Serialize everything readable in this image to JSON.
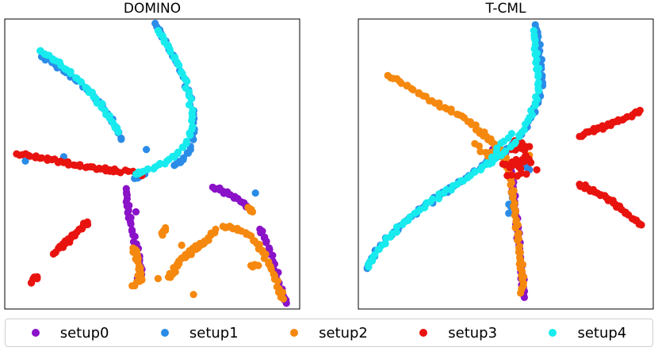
{
  "chart_data": [
    {
      "type": "scatter",
      "title": "DOMINO",
      "xlabel": "",
      "ylabel": "",
      "xlim": [
        0,
        100
      ],
      "ylim": [
        0,
        100
      ],
      "axis_ticks": false,
      "grid": false,
      "series": [
        {
          "name": "setup0",
          "color": "#8a12c8",
          "points": [
            [
              41.2,
              41.5
            ],
            [
              41.5,
              38.0
            ],
            [
              42.0,
              34.0
            ],
            [
              42.6,
              30.0
            ],
            [
              43.5,
              25.5
            ],
            [
              44.6,
              21.5
            ],
            [
              45.5,
              17.5
            ],
            [
              46.0,
              14.5
            ],
            [
              46.4,
              12.0
            ],
            [
              45.2,
              10.5
            ],
            [
              44.5,
              33.5
            ],
            [
              70.5,
              42.0
            ],
            [
              73.0,
              41.0
            ],
            [
              76.0,
              39.5
            ],
            [
              79.0,
              38.0
            ],
            [
              81.0,
              36.5
            ],
            [
              82.5,
              35.0
            ],
            [
              86.5,
              27.5
            ],
            [
              88.0,
              24.5
            ],
            [
              89.8,
              20.5
            ],
            [
              91.5,
              15.5
            ],
            [
              93.0,
              9.0
            ],
            [
              94.5,
              4.5
            ],
            [
              95.5,
              2.0
            ]
          ]
        },
        {
          "name": "setup1",
          "color": "#2b8ce8",
          "points": [
            [
              51.0,
              98.5
            ],
            [
              53.0,
              95.0
            ],
            [
              55.5,
              90.5
            ],
            [
              58.0,
              85.5
            ],
            [
              60.5,
              80.0
            ],
            [
              62.5,
              74.0
            ],
            [
              64.0,
              67.0
            ],
            [
              64.2,
              61.0
            ],
            [
              63.0,
              55.0
            ],
            [
              60.5,
              51.5
            ],
            [
              57.5,
              49.5
            ],
            [
              12.5,
              87.0
            ],
            [
              16.0,
              85.0
            ],
            [
              20.0,
              82.0
            ],
            [
              24.0,
              79.0
            ],
            [
              28.0,
              75.5
            ],
            [
              32.0,
              71.5
            ],
            [
              35.5,
              66.5
            ],
            [
              38.0,
              62.0
            ],
            [
              39.5,
              58.5
            ],
            [
              7.0,
              51.0
            ],
            [
              20.0,
              52.5
            ],
            [
              44.0,
              45.0
            ],
            [
              47.5,
              46.5
            ],
            [
              48.0,
              55.0
            ],
            [
              85.0,
              40.0
            ]
          ]
        },
        {
          "name": "setup2",
          "color": "#f5880e",
          "points": [
            [
              74.0,
              28.5
            ],
            [
              77.0,
              28.0
            ],
            [
              80.0,
              27.0
            ],
            [
              83.0,
              25.5
            ],
            [
              85.5,
              22.5
            ],
            [
              87.5,
              19.5
            ],
            [
              89.5,
              15.5
            ],
            [
              91.5,
              11.5
            ],
            [
              93.0,
              7.0
            ],
            [
              94.5,
              3.5
            ],
            [
              71.5,
              27.5
            ],
            [
              69.0,
              24.5
            ],
            [
              67.5,
              22.5
            ],
            [
              65.5,
              22.0
            ],
            [
              63.5,
              20.0
            ],
            [
              62.0,
              18.5
            ],
            [
              60.0,
              17.5
            ],
            [
              58.5,
              15.5
            ],
            [
              57.0,
              12.5
            ],
            [
              55.5,
              11.0
            ],
            [
              54.5,
              28.0
            ],
            [
              53.5,
              25.5
            ],
            [
              65.5,
              21.0
            ],
            [
              43.5,
              21.0
            ],
            [
              44.5,
              19.0
            ],
            [
              45.0,
              16.5
            ],
            [
              46.0,
              14.0
            ],
            [
              45.5,
              11.0
            ],
            [
              46.5,
              10.0
            ],
            [
              43.2,
              8.0
            ],
            [
              52.0,
              10.5
            ],
            [
              83.5,
              15.0
            ],
            [
              86.0,
              15.0
            ],
            [
              64.0,
              5.0
            ],
            [
              82.5,
              35.0
            ],
            [
              84.0,
              33.5
            ],
            [
              60.0,
              22.0
            ]
          ]
        },
        {
          "name": "setup3",
          "color": "#e8130f",
          "points": [
            [
              4.0,
              53.5
            ],
            [
              8.0,
              53.0
            ],
            [
              12.0,
              52.0
            ],
            [
              16.0,
              51.5
            ],
            [
              20.0,
              50.5
            ],
            [
              24.0,
              49.5
            ],
            [
              28.0,
              49.0
            ],
            [
              32.0,
              48.5
            ],
            [
              35.5,
              48.0
            ],
            [
              38.0,
              47.5
            ],
            [
              43.5,
              47.5
            ],
            [
              46.5,
              46.0
            ],
            [
              16.5,
              19.0
            ],
            [
              18.5,
              21.0
            ],
            [
              20.5,
              22.5
            ],
            [
              22.5,
              24.5
            ],
            [
              24.5,
              26.5
            ],
            [
              26.5,
              28.5
            ],
            [
              28.0,
              30.0
            ],
            [
              9.0,
              9.0
            ],
            [
              10.0,
              11.0
            ],
            [
              11.0,
              10.5
            ]
          ]
        },
        {
          "name": "setup4",
          "color": "#18ebee",
          "points": [
            [
              52.0,
              96.0
            ],
            [
              54.0,
              93.0
            ],
            [
              56.0,
              89.5
            ],
            [
              58.5,
              85.0
            ],
            [
              61.0,
              79.5
            ],
            [
              62.5,
              73.5
            ],
            [
              63.5,
              67.5
            ],
            [
              63.5,
              62.0
            ],
            [
              61.5,
              57.0
            ],
            [
              58.5,
              53.5
            ],
            [
              55.0,
              51.0
            ],
            [
              51.0,
              49.0
            ],
            [
              47.0,
              47.5
            ],
            [
              44.5,
              46.5
            ],
            [
              12.0,
              89.0
            ],
            [
              14.5,
              87.5
            ],
            [
              17.5,
              85.5
            ],
            [
              21.0,
              82.5
            ],
            [
              24.5,
              79.5
            ],
            [
              28.0,
              76.0
            ],
            [
              31.0,
              72.5
            ],
            [
              34.0,
              68.5
            ],
            [
              36.5,
              64.5
            ],
            [
              38.5,
              61.0
            ]
          ]
        }
      ]
    },
    {
      "type": "scatter",
      "title": "T-CML",
      "xlabel": "",
      "ylabel": "",
      "xlim": [
        0,
        100
      ],
      "ylim": [
        0,
        100
      ],
      "axis_ticks": false,
      "grid": false,
      "series": [
        {
          "name": "setup0",
          "color": "#8a12c8",
          "points": [
            [
              51.5,
              49.5
            ],
            [
              52.0,
              46.0
            ],
            [
              52.5,
              42.0
            ],
            [
              53.0,
              37.0
            ],
            [
              53.5,
              32.0
            ],
            [
              54.0,
              27.0
            ],
            [
              54.5,
              22.0
            ],
            [
              55.0,
              17.0
            ],
            [
              55.5,
              12.0
            ],
            [
              56.0,
              7.5
            ],
            [
              56.3,
              4.0
            ],
            [
              49.5,
              52.0
            ],
            [
              47.0,
              53.5
            ],
            [
              45.5,
              55.0
            ],
            [
              50.0,
              54.0
            ]
          ]
        },
        {
          "name": "setup1",
          "color": "#2b8ce8",
          "points": [
            [
              60.0,
              98.0
            ],
            [
              61.0,
              94.0
            ],
            [
              61.5,
              89.0
            ],
            [
              62.0,
              84.0
            ],
            [
              62.5,
              78.0
            ],
            [
              61.0,
              72.0
            ],
            [
              59.0,
              67.0
            ],
            [
              56.5,
              62.0
            ],
            [
              53.5,
              57.5
            ],
            [
              50.0,
              55.0
            ],
            [
              46.0,
              52.5
            ],
            [
              42.0,
              49.5
            ],
            [
              37.5,
              46.0
            ],
            [
              32.5,
              42.5
            ],
            [
              27.5,
              39.0
            ],
            [
              22.0,
              35.0
            ],
            [
              17.0,
              31.0
            ],
            [
              12.0,
              26.5
            ],
            [
              7.5,
              22.0
            ],
            [
              4.5,
              17.5
            ],
            [
              3.0,
              14.0
            ],
            [
              56.0,
              50.0
            ],
            [
              58.0,
              48.0
            ],
            [
              52.0,
              40.0
            ],
            [
              51.0,
              33.0
            ]
          ]
        },
        {
          "name": "setup2",
          "color": "#f5880e",
          "points": [
            [
              10.0,
              80.5
            ],
            [
              14.0,
              78.5
            ],
            [
              18.0,
              76.0
            ],
            [
              22.0,
              73.5
            ],
            [
              26.0,
              71.0
            ],
            [
              30.0,
              69.0
            ],
            [
              34.0,
              67.0
            ],
            [
              38.0,
              64.5
            ],
            [
              41.0,
              61.5
            ],
            [
              43.5,
              59.5
            ],
            [
              46.0,
              57.0
            ],
            [
              48.5,
              54.0
            ],
            [
              50.0,
              51.0
            ],
            [
              51.0,
              47.5
            ],
            [
              52.0,
              43.5
            ],
            [
              52.5,
              39.0
            ],
            [
              53.0,
              34.5
            ],
            [
              53.5,
              30.0
            ],
            [
              54.0,
              25.5
            ],
            [
              54.5,
              21.0
            ],
            [
              55.0,
              17.0
            ],
            [
              55.5,
              13.0
            ],
            [
              56.0,
              9.0
            ],
            [
              55.0,
              5.5
            ],
            [
              39.5,
              57.0
            ],
            [
              44.0,
              52.5
            ],
            [
              47.5,
              56.5
            ],
            [
              54.0,
              46.0
            ],
            [
              58.0,
              53.0
            ]
          ]
        },
        {
          "name": "setup3",
          "color": "#e8130f",
          "points": [
            [
              75.0,
              59.5
            ],
            [
              78.0,
              61.0
            ],
            [
              81.0,
              62.0
            ],
            [
              84.0,
              63.0
            ],
            [
              87.0,
              64.5
            ],
            [
              90.0,
              65.5
            ],
            [
              93.0,
              67.0
            ],
            [
              95.5,
              68.5
            ],
            [
              75.0,
              43.0
            ],
            [
              78.0,
              41.5
            ],
            [
              81.0,
              40.0
            ],
            [
              84.0,
              38.5
            ],
            [
              86.5,
              36.5
            ],
            [
              89.0,
              34.5
            ],
            [
              91.5,
              32.5
            ],
            [
              94.0,
              30.5
            ],
            [
              96.0,
              29.0
            ],
            [
              49.0,
              50.0
            ],
            [
              51.5,
              49.0
            ],
            [
              53.5,
              51.5
            ],
            [
              55.0,
              48.5
            ],
            [
              56.5,
              52.5
            ],
            [
              58.5,
              50.5
            ],
            [
              55.5,
              55.5
            ],
            [
              52.0,
              55.0
            ],
            [
              57.0,
              46.5
            ],
            [
              50.5,
              46.0
            ],
            [
              60.5,
              48.0
            ],
            [
              53.0,
              58.0
            ],
            [
              58.0,
              56.0
            ]
          ]
        },
        {
          "name": "setup4",
          "color": "#18ebee",
          "points": [
            [
              59.5,
              96.0
            ],
            [
              60.0,
              91.0
            ],
            [
              60.5,
              86.0
            ],
            [
              61.0,
              81.0
            ],
            [
              61.0,
              76.0
            ],
            [
              60.0,
              71.0
            ],
            [
              58.0,
              66.0
            ],
            [
              55.5,
              61.0
            ],
            [
              53.0,
              57.0
            ],
            [
              49.5,
              54.0
            ],
            [
              46.0,
              51.5
            ],
            [
              42.0,
              49.0
            ],
            [
              38.0,
              46.0
            ],
            [
              33.5,
              43.0
            ],
            [
              29.0,
              40.0
            ],
            [
              24.5,
              37.0
            ],
            [
              20.0,
              33.5
            ],
            [
              15.5,
              30.0
            ],
            [
              11.5,
              26.0
            ],
            [
              8.0,
              22.0
            ],
            [
              5.0,
              18.0
            ],
            [
              3.5,
              14.5
            ],
            [
              52.0,
              60.5
            ],
            [
              47.0,
              55.5
            ],
            [
              44.5,
              50.0
            ]
          ]
        }
      ]
    }
  ],
  "legend": {
    "placement": "bottom",
    "items": [
      {
        "label": "setup0",
        "color": "#8a12c8"
      },
      {
        "label": "setup1",
        "color": "#2b8ce8"
      },
      {
        "label": "setup2",
        "color": "#f5880e"
      },
      {
        "label": "setup3",
        "color": "#e8130f"
      },
      {
        "label": "setup4",
        "color": "#18ebee"
      }
    ]
  }
}
